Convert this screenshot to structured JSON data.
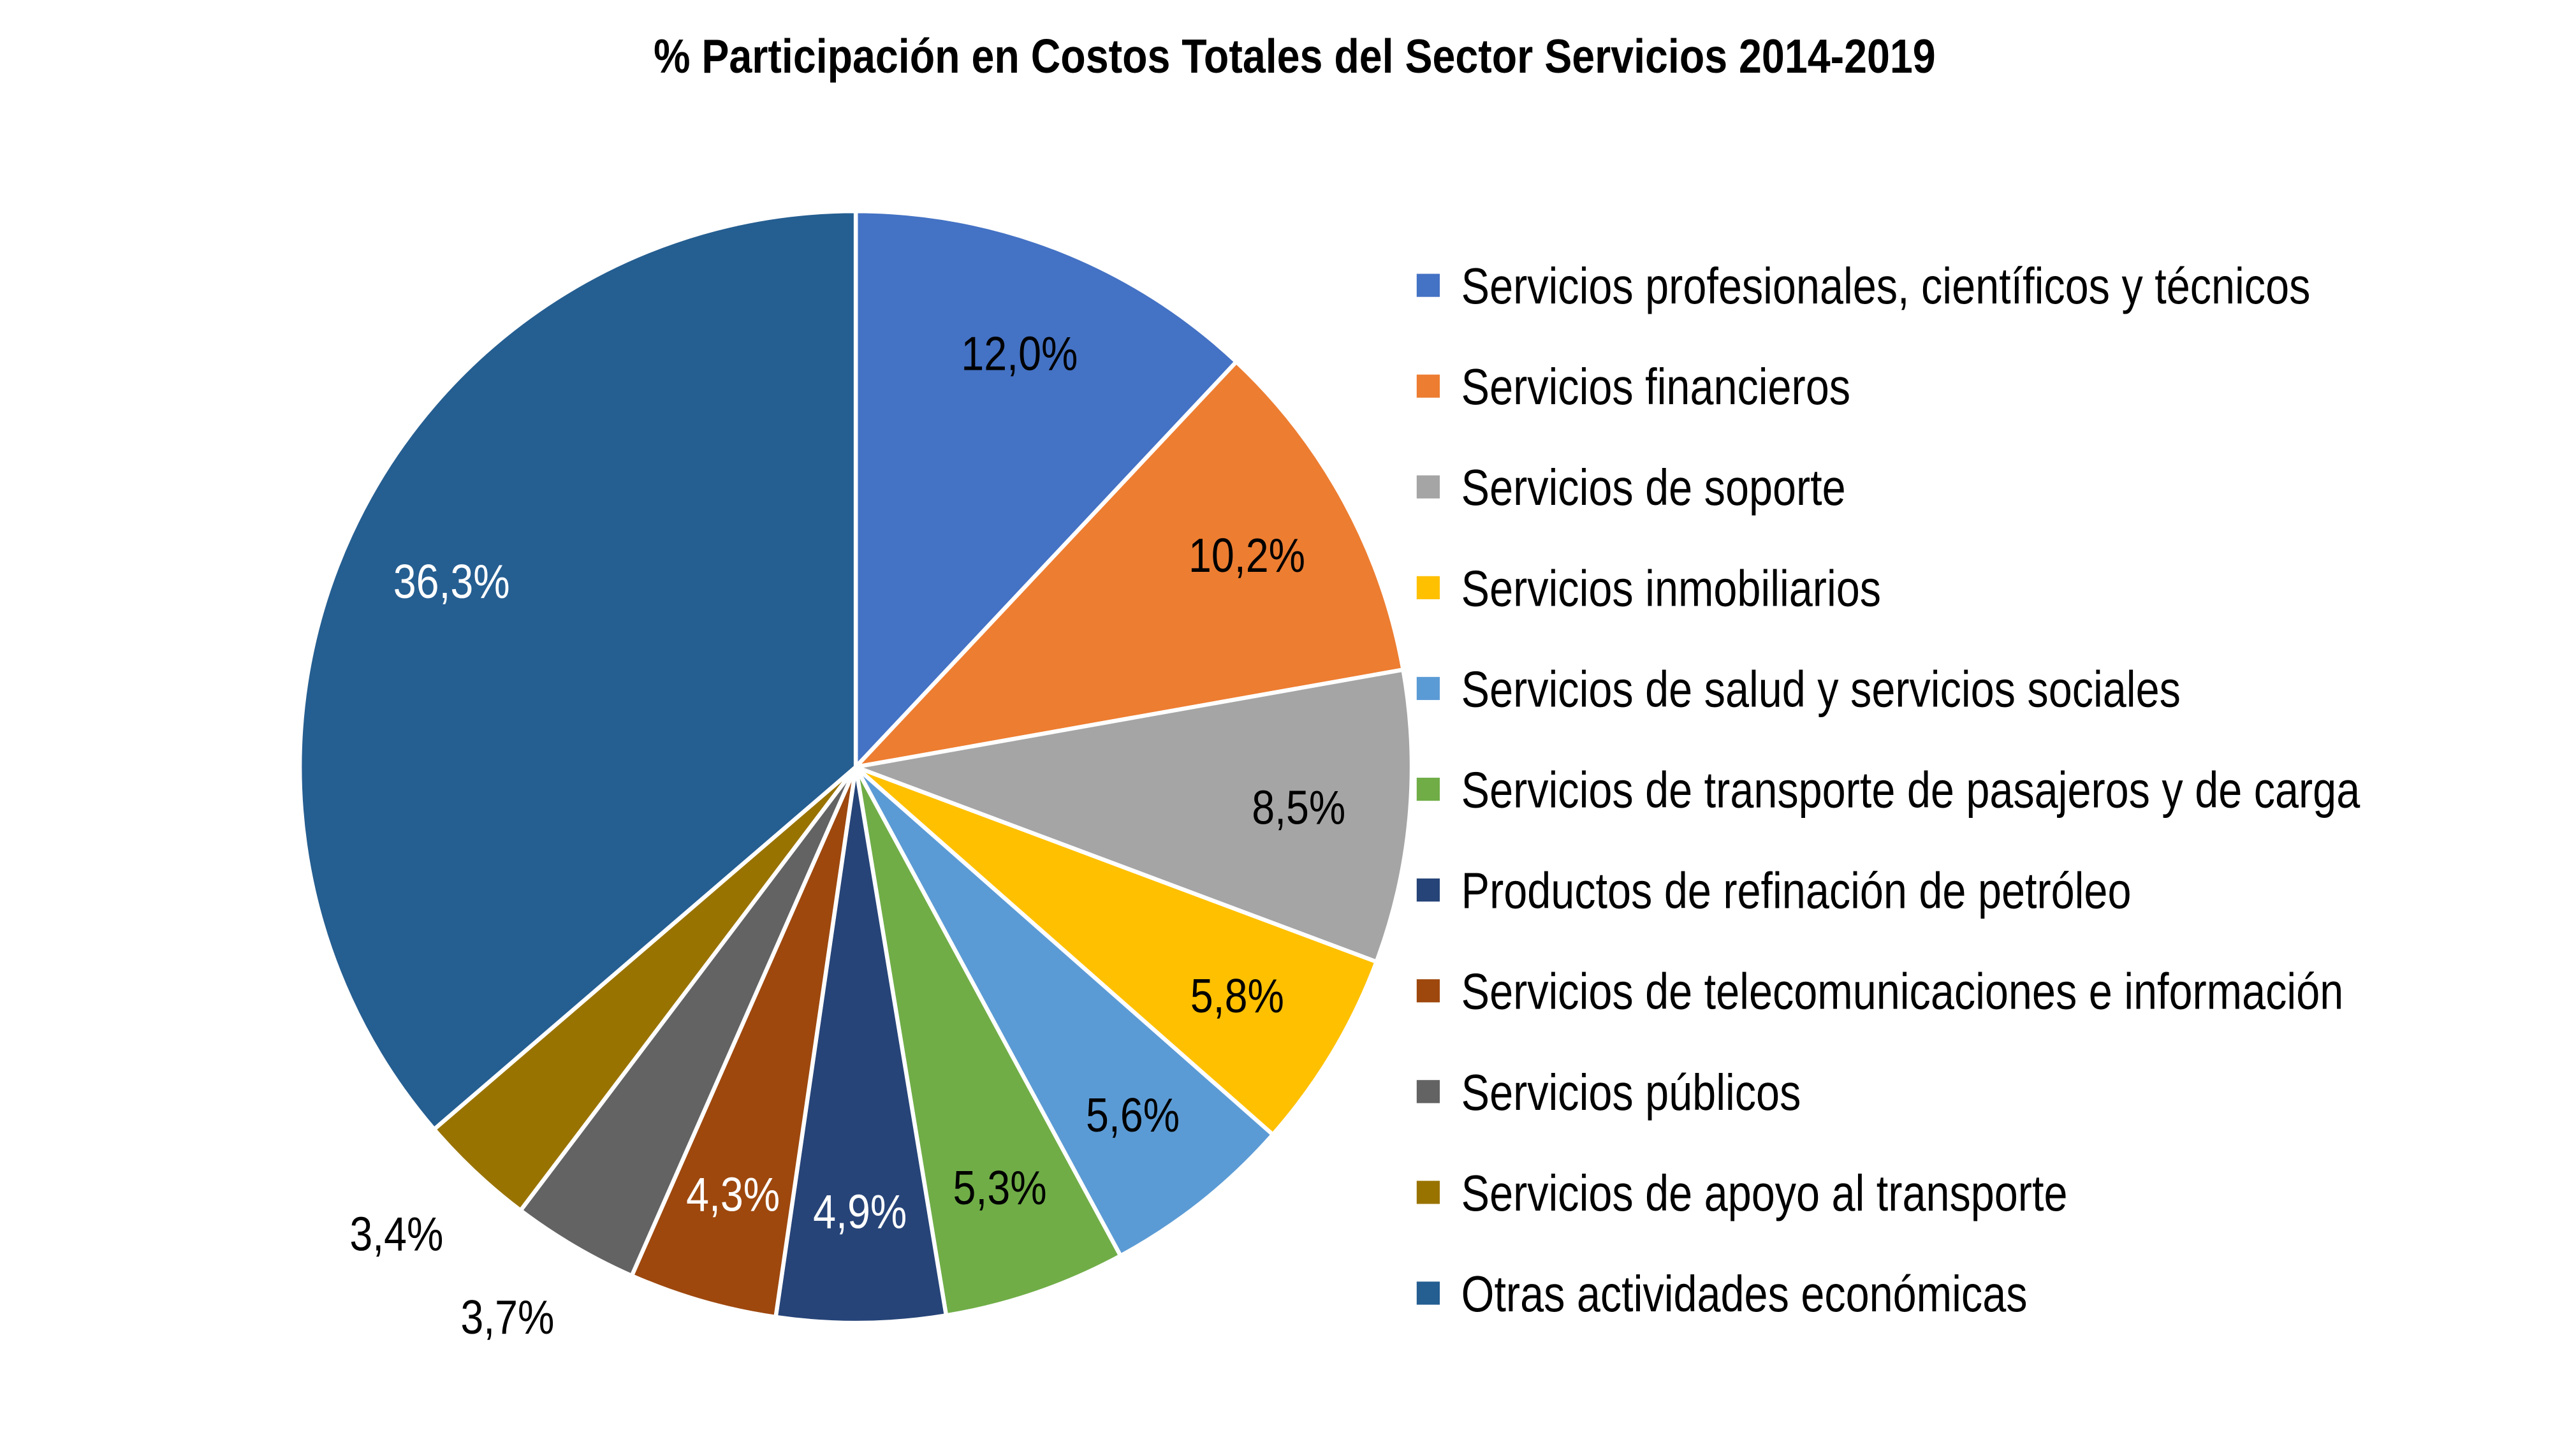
{
  "chart_data": {
    "type": "pie",
    "title": "% Participación en Costos Totales del Sector Servicios 2014-2019",
    "start_angle": "top, clockwise",
    "legend_position": "right",
    "categories": [
      "Servicios profesionales, científicos y técnicos",
      "Servicios financieros",
      "Servicios de soporte",
      "Servicios inmobiliarios",
      "Servicios de salud  y servicios sociales",
      "Servicios de transporte de pasajeros y de carga",
      "Productos de refinación de petróleo",
      "Servicios de telecomunicaciones e información",
      "Servicios públicos",
      "Servicios de apoyo al transporte",
      "Otras actividades económicas"
    ],
    "values": [
      12.0,
      10.2,
      8.5,
      5.8,
      5.6,
      5.3,
      4.9,
      4.3,
      3.7,
      3.4,
      36.3
    ],
    "data_labels": [
      "12,0%",
      "10,2%",
      "8,5%",
      "5,8%",
      "5,6%",
      "5,3%",
      "4,9%",
      "4,3%",
      "3,7%",
      "3,4%",
      "36,3%"
    ],
    "colors": [
      "#4472C4",
      "#ED7D31",
      "#A5A5A5",
      "#FFC000",
      "#5B9BD5",
      "#70AD47",
      "#264478",
      "#9E480E",
      "#636363",
      "#997300",
      "#255E91"
    ],
    "label_colors": [
      "#000000",
      "#000000",
      "#000000",
      "#000000",
      "#000000",
      "#000000",
      "#FFFFFF",
      "#FFFFFF",
      "#000000",
      "#000000",
      "#FFFFFF"
    ]
  }
}
